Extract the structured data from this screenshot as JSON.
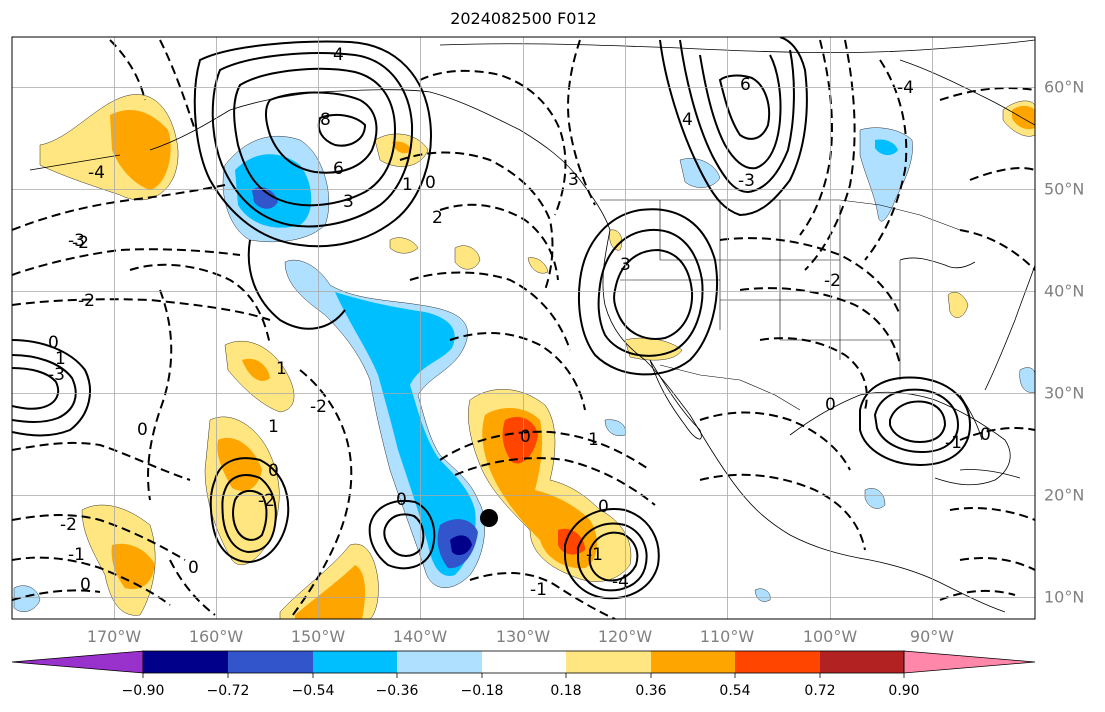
{
  "title": "2024082500 F012",
  "map": {
    "lon_range": [
      -180,
      -80
    ],
    "lat_range": [
      8,
      65
    ],
    "lon_ticks": [
      "170°W",
      "160°W",
      "150°W",
      "140°W",
      "130°W",
      "120°W",
      "110°W",
      "100°W",
      "90°W"
    ],
    "lat_ticks": [
      "60°N",
      "50°N",
      "40°N",
      "30°N",
      "20°N",
      "10°N"
    ],
    "gridlines": true,
    "marker": {
      "lon": -133.8,
      "lat": 17.8
    },
    "contour_labels": [
      "4",
      "8",
      "6",
      "3",
      "1",
      "0",
      "2",
      "3",
      "-2",
      "-3",
      "-4",
      "-2",
      "0",
      "1",
      "-3",
      "1",
      "-2",
      "0",
      "0",
      "-2",
      "1",
      "-2",
      "-1",
      "0",
      "0",
      "0",
      "-1",
      "0",
      "1",
      "-1",
      "0",
      "-4",
      "6",
      "4",
      "-3",
      "3",
      "-2",
      "0",
      "-1",
      "0",
      "-4"
    ]
  },
  "colorbar": {
    "colors": [
      "#9932cc",
      "#00008b",
      "#3355cc",
      "#00bfff",
      "#b0e0ff",
      "#ffffff",
      "#ffe680",
      "#ffa500",
      "#ff4500",
      "#b22222",
      "#ff88aa"
    ],
    "labels": [
      "−0.90",
      "−0.72",
      "−0.54",
      "−0.36",
      "−0.18",
      "0.18",
      "0.36",
      "0.54",
      "0.72",
      "0.90"
    ],
    "extend": "both"
  }
}
